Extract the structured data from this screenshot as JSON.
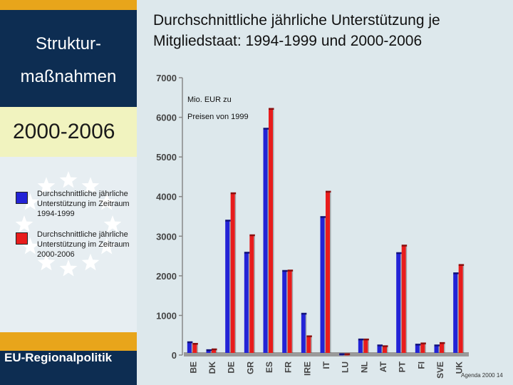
{
  "sidebar": {
    "title_line1": "Struktur-",
    "title_line2": "maßnahmen",
    "period": "2000-2006",
    "legend": [
      {
        "label": "Durchschnittliche jährliche Unterstützung im Zeitraum 1994-1999",
        "color": "#2323d6"
      },
      {
        "label": "Durchschnittliche jährliche Unterstützung im Zeitraum 2000-2006",
        "color": "#e81c1c"
      }
    ],
    "footer": "EU-Regionalpolitik"
  },
  "page_ref": "Agenda 2000 14",
  "chart_data": {
    "type": "bar",
    "title": "Durchschnittliche jährliche Unterstützung je Mitgliedstaat: 1994-1999 und 2000-2006",
    "unit_line1": "Mio. EUR zu",
    "unit_line2": "Preisen von 1999",
    "categories": [
      "BE",
      "DK",
      "DE",
      "GR",
      "ES",
      "FR",
      "IRE",
      "IT",
      "LU",
      "NL",
      "AT",
      "PT",
      "FI",
      "SVE",
      "UK"
    ],
    "series": [
      {
        "name": "1994-1999",
        "color": "#2323d6",
        "values": [
          310,
          110,
          3380,
          2570,
          5700,
          2110,
          1030,
          3470,
          10,
          380,
          230,
          2560,
          250,
          230,
          2050
        ]
      },
      {
        "name": "2000-2006",
        "color": "#e81c1c",
        "values": [
          270,
          130,
          4070,
          3010,
          6200,
          2120,
          460,
          4110,
          10,
          380,
          210,
          2750,
          280,
          290,
          2260
        ]
      }
    ],
    "ylim": [
      0,
      7000
    ],
    "yticks": [
      "0",
      "1000",
      "2000",
      "3000",
      "4000",
      "5000",
      "6000",
      "7000"
    ],
    "grid": false
  }
}
